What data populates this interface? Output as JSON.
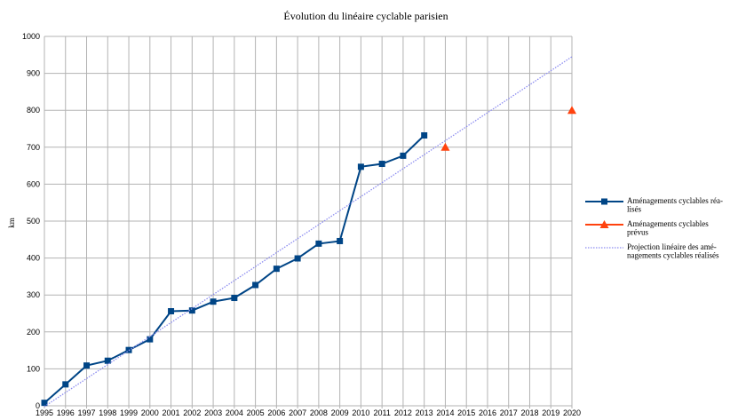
{
  "chart_data": {
    "type": "line",
    "title": "Évolution du linéaire cyclable parisien",
    "xlabel": "",
    "ylabel": "km",
    "xlim": [
      1995,
      2020
    ],
    "ylim": [
      0,
      1000
    ],
    "yticks": [
      0,
      100,
      200,
      300,
      400,
      500,
      600,
      700,
      800,
      900,
      1000
    ],
    "xticks": [
      "1995",
      "1996",
      "1997",
      "1998",
      "1999",
      "2000",
      "2001",
      "2002",
      "2003",
      "2004",
      "2005",
      "2006",
      "2007",
      "2008",
      "2009",
      "2010",
      "2011",
      "2012",
      "2013",
      "2014",
      "2015",
      "2016",
      "2017",
      "2018",
      "2019",
      "2020"
    ],
    "grid": true,
    "legend_position": "right",
    "series": [
      {
        "name_lines": [
          "Aménagements cyclables réa-",
          "lisés"
        ],
        "color": "#004586",
        "marker": "square",
        "style": "solid",
        "points": [
          {
            "x": 1995,
            "y": 8
          },
          {
            "x": 1996,
            "y": 58
          },
          {
            "x": 1997,
            "y": 109
          },
          {
            "x": 1998,
            "y": 122
          },
          {
            "x": 1999,
            "y": 151
          },
          {
            "x": 2000,
            "y": 180
          },
          {
            "x": 2001,
            "y": 256
          },
          {
            "x": 2002,
            "y": 258
          },
          {
            "x": 2003,
            "y": 282
          },
          {
            "x": 2004,
            "y": 292
          },
          {
            "x": 2005,
            "y": 327
          },
          {
            "x": 2006,
            "y": 371
          },
          {
            "x": 2007,
            "y": 399
          },
          {
            "x": 2008,
            "y": 439
          },
          {
            "x": 2009,
            "y": 446
          },
          {
            "x": 2010,
            "y": 647
          },
          {
            "x": 2011,
            "y": 655
          },
          {
            "x": 2012,
            "y": 677
          },
          {
            "x": 2013,
            "y": 732
          }
        ]
      },
      {
        "name_lines": [
          "Aménagements cyclables",
          "prévus"
        ],
        "color": "#ff420e",
        "marker": "triangle",
        "style": "none",
        "points": [
          {
            "x": 2014,
            "y": 700
          },
          {
            "x": 2020,
            "y": 800
          }
        ]
      },
      {
        "name_lines": [
          "Projection linéaire des amé-",
          "nagements cyclables réalisés"
        ],
        "color": "#8c8cf0",
        "marker": "none",
        "style": "dotted",
        "points": [
          {
            "x": 1995,
            "y": -2
          },
          {
            "x": 2020,
            "y": 945
          }
        ]
      }
    ]
  }
}
